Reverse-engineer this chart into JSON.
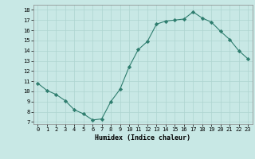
{
  "x": [
    0,
    1,
    2,
    3,
    4,
    5,
    6,
    7,
    8,
    9,
    10,
    11,
    12,
    13,
    14,
    15,
    16,
    17,
    18,
    19,
    20,
    21,
    22,
    23
  ],
  "y": [
    10.8,
    10.1,
    9.7,
    9.1,
    8.2,
    7.8,
    7.2,
    7.3,
    9.0,
    10.2,
    12.4,
    14.1,
    14.9,
    16.6,
    16.9,
    17.0,
    17.1,
    17.8,
    17.2,
    16.8,
    15.9,
    15.1,
    14.0,
    13.2
  ],
  "line_color": "#2e7d6e",
  "marker": "D",
  "marker_size": 2.2,
  "bg_color": "#c8e8e5",
  "grid_color": "#aed4d0",
  "xlabel": "Humidex (Indice chaleur)",
  "ylabel_ticks": [
    7,
    8,
    9,
    10,
    11,
    12,
    13,
    14,
    15,
    16,
    17,
    18
  ],
  "ylim": [
    6.8,
    18.5
  ],
  "xlim": [
    -0.5,
    23.5
  ],
  "xlabel_fontsize": 6.0,
  "tick_fontsize": 5.0
}
